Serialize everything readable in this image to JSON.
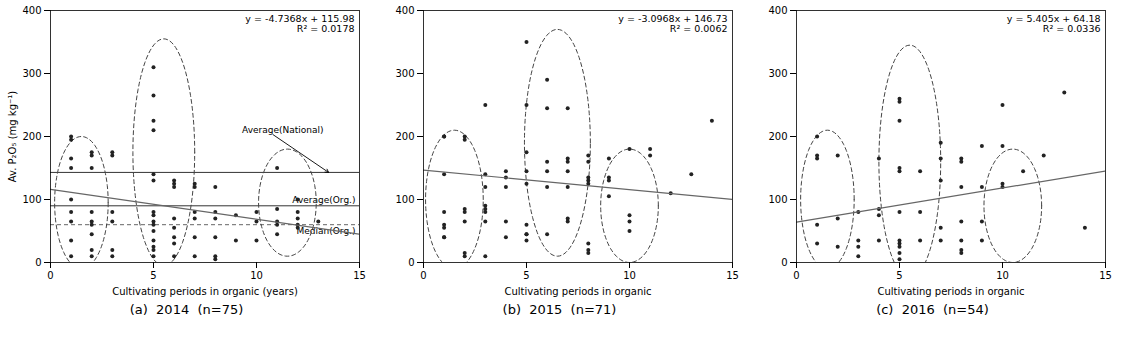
{
  "chart_data": [
    {
      "type": "scatter",
      "title": "(a)  2014  (n=75)",
      "x_label": "Cultivating periods in organic (years)",
      "y_label": "Av. P₂O₅ (mg kg⁻¹)",
      "x": [
        1,
        1,
        1,
        1,
        1,
        1,
        1,
        1,
        1,
        2,
        2,
        2,
        2,
        2,
        2,
        2,
        2,
        2,
        3,
        3,
        3,
        3,
        3,
        3,
        5,
        5,
        5,
        5,
        5,
        5,
        5,
        5,
        5,
        5,
        5,
        5,
        5,
        5,
        5,
        6,
        6,
        6,
        6,
        6,
        6,
        6,
        6,
        7,
        7,
        7,
        7,
        7,
        7,
        8,
        8,
        8,
        8,
        8,
        8,
        9,
        9,
        10,
        10,
        10,
        11,
        11,
        11,
        11,
        11,
        12,
        12,
        12,
        12,
        12,
        13
      ],
      "values": [
        10,
        35,
        65,
        80,
        100,
        150,
        165,
        195,
        200,
        10,
        20,
        45,
        60,
        65,
        80,
        150,
        170,
        175,
        10,
        20,
        65,
        80,
        170,
        175,
        10,
        20,
        25,
        35,
        50,
        60,
        65,
        75,
        80,
        130,
        140,
        210,
        225,
        265,
        310,
        10,
        30,
        40,
        55,
        70,
        120,
        125,
        130,
        10,
        40,
        70,
        80,
        120,
        125,
        5,
        10,
        40,
        70,
        80,
        120,
        35,
        75,
        35,
        65,
        80,
        45,
        60,
        65,
        85,
        150,
        55,
        60,
        70,
        80,
        100,
        65
      ],
      "color": "#222222",
      "regression": {
        "x": [
          0,
          15
        ],
        "values": [
          115.98,
          44.928
        ],
        "color": "#666666"
      },
      "hlines": [
        {
          "value": 143,
          "label": "Average(National)",
          "color": "#333333",
          "line_style": "solid",
          "marker": "arrow"
        },
        {
          "value": 90,
          "label": "Average(Org.)",
          "color": "#333333",
          "line_style": "solid"
        },
        {
          "value": 60,
          "label": "Median(Org.)",
          "color": "#666666",
          "line_style": "dashed"
        }
      ],
      "ellipses": {
        "color": "#444444",
        "line_style": "dashed",
        "items": [
          {
            "cx": 1.5,
            "cy": 95,
            "rx": 1.3,
            "ry": 105,
            "angle": 0
          },
          {
            "cx": 5.5,
            "cy": 175,
            "rx": 1.5,
            "ry": 180,
            "angle": 0
          },
          {
            "cx": 11.5,
            "cy": 95,
            "rx": 1.4,
            "ry": 85,
            "angle": 0
          }
        ]
      },
      "annotations": [
        "y = -4.7368x + 115.98",
        "R² = 0.0178"
      ],
      "xlim": [
        0,
        15
      ],
      "ylim": [
        0,
        400
      ],
      "xticks": [
        0,
        5,
        10,
        15
      ],
      "yticks": [
        0,
        100,
        200,
        300,
        400
      ],
      "grid": false
    },
    {
      "type": "scatter",
      "title": "(b)  2015  (n=71)",
      "x_label": "Cultivating periods in organic",
      "x": [
        1,
        1,
        1,
        1,
        1,
        1,
        1,
        1,
        2,
        2,
        2,
        2,
        2,
        2,
        2,
        3,
        3,
        3,
        3,
        3,
        3,
        3,
        3,
        4,
        4,
        4,
        4,
        4,
        5,
        5,
        5,
        5,
        5,
        5,
        5,
        5,
        5,
        6,
        6,
        6,
        6,
        6,
        6,
        7,
        7,
        7,
        7,
        7,
        7,
        7,
        8,
        8,
        8,
        8,
        8,
        8,
        8,
        8,
        9,
        9,
        9,
        9,
        10,
        10,
        10,
        10,
        11,
        11,
        12,
        13,
        14
      ],
      "values": [
        40,
        40,
        55,
        60,
        80,
        140,
        200,
        200,
        10,
        15,
        65,
        80,
        85,
        195,
        200,
        10,
        65,
        80,
        85,
        90,
        120,
        140,
        250,
        40,
        65,
        120,
        135,
        145,
        35,
        45,
        45,
        60,
        125,
        145,
        175,
        250,
        350,
        45,
        120,
        145,
        160,
        245,
        290,
        65,
        70,
        120,
        145,
        160,
        165,
        245,
        15,
        20,
        30,
        125,
        130,
        135,
        160,
        170,
        105,
        130,
        135,
        165,
        50,
        65,
        75,
        180,
        170,
        180,
        110,
        140,
        225
      ],
      "color": "#222222",
      "regression": {
        "x": [
          0,
          15
        ],
        "values": [
          146.73,
          100.278
        ],
        "color": "#666666"
      },
      "ellipses": {
        "color": "#444444",
        "line_style": "dashed",
        "items": [
          {
            "cx": 1.5,
            "cy": 100,
            "rx": 1.4,
            "ry": 110,
            "angle": 0
          },
          {
            "cx": 6.5,
            "cy": 190,
            "rx": 1.6,
            "ry": 180,
            "angle": 0
          },
          {
            "cx": 10.0,
            "cy": 90,
            "rx": 1.4,
            "ry": 90,
            "angle": 0
          }
        ]
      },
      "annotations": [
        "y = -3.0968x + 146.73",
        "R² = 0.0062"
      ],
      "xlim": [
        0,
        15
      ],
      "ylim": [
        0,
        400
      ],
      "xticks": [
        0,
        5,
        10,
        15
      ],
      "yticks": [
        0,
        100,
        200,
        300,
        400
      ],
      "grid": false
    },
    {
      "type": "scatter",
      "title": "(c)  2016  (n=54)",
      "x_label": "Cultivating periods in organic",
      "x": [
        1,
        1,
        1,
        1,
        1,
        2,
        2,
        2,
        3,
        3,
        3,
        3,
        4,
        4,
        4,
        4,
        5,
        5,
        5,
        5,
        5,
        5,
        5,
        5,
        5,
        5,
        5,
        6,
        6,
        6,
        7,
        7,
        7,
        7,
        7,
        8,
        8,
        8,
        8,
        8,
        8,
        8,
        9,
        9,
        9,
        9,
        10,
        10,
        10,
        10,
        11,
        12,
        13,
        14
      ],
      "values": [
        30,
        60,
        165,
        170,
        200,
        25,
        70,
        170,
        10,
        25,
        35,
        80,
        35,
        75,
        85,
        165,
        5,
        15,
        25,
        30,
        35,
        80,
        145,
        150,
        225,
        260,
        255,
        35,
        80,
        145,
        35,
        55,
        130,
        165,
        190,
        15,
        20,
        35,
        65,
        120,
        160,
        165,
        35,
        65,
        120,
        185,
        120,
        250,
        185,
        125,
        145,
        170,
        270,
        55
      ],
      "color": "#222222",
      "regression": {
        "x": [
          0,
          15
        ],
        "values": [
          64.18,
          145.255
        ],
        "color": "#666666"
      },
      "ellipses": {
        "color": "#444444",
        "line_style": "dashed",
        "items": [
          {
            "cx": 1.5,
            "cy": 100,
            "rx": 1.3,
            "ry": 110,
            "angle": 0
          },
          {
            "cx": 5.5,
            "cy": 160,
            "rx": 1.5,
            "ry": 185,
            "angle": 0
          },
          {
            "cx": 10.5,
            "cy": 90,
            "rx": 1.4,
            "ry": 90,
            "angle": 0
          }
        ]
      },
      "annotations": [
        "y = 5.405x + 64.18",
        "R² = 0.0336"
      ],
      "xlim": [
        0,
        15
      ],
      "ylim": [
        0,
        400
      ],
      "xticks": [
        0,
        5,
        10,
        15
      ],
      "yticks": [
        0,
        100,
        200,
        300,
        400
      ],
      "grid": false
    }
  ]
}
